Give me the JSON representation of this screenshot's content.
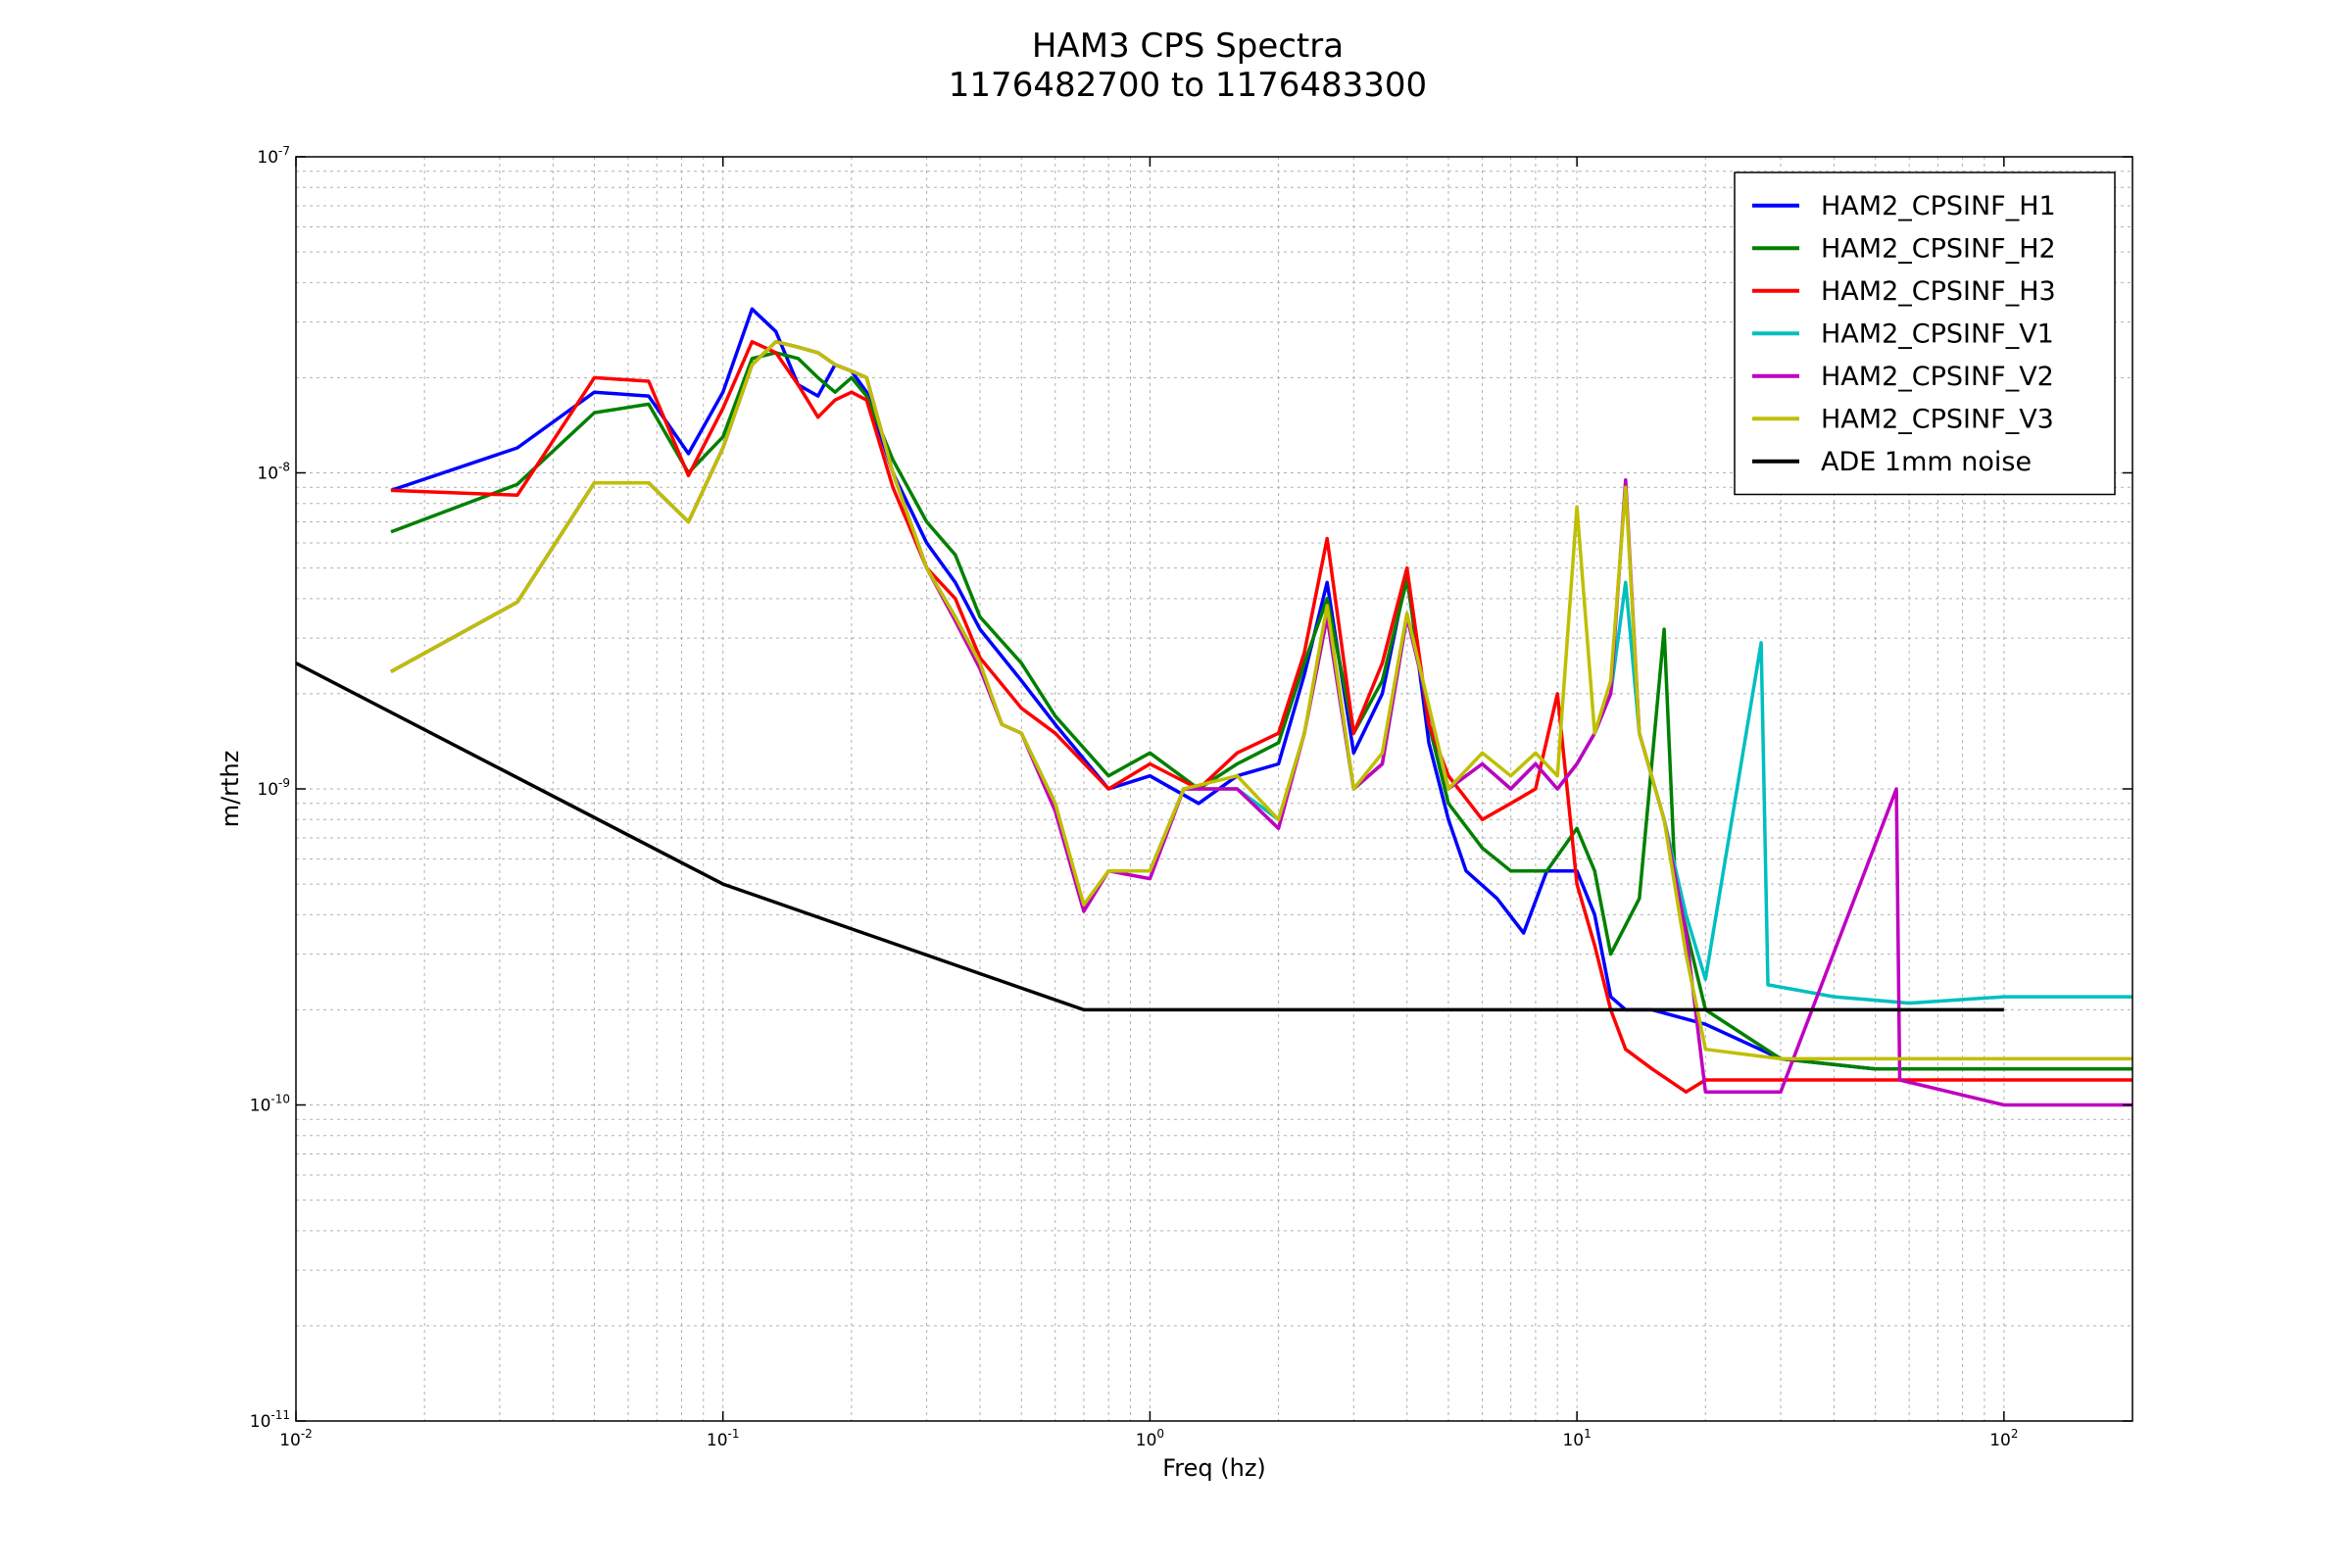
{
  "chart_data": {
    "type": "line",
    "title": "HAM3 CPS Spectra",
    "subtitle": "1176482700 to 1176483300",
    "xlabel": "Freq (hz)",
    "ylabel": "m/rthz",
    "xscale": "log",
    "yscale": "log",
    "xlim": [
      0.01,
      200
    ],
    "ylim": [
      1e-11,
      1e-07
    ],
    "grid": true,
    "legend_position": "top-right",
    "x_ticks": [
      {
        "base": "10",
        "exp": "-2",
        "value": 0.01
      },
      {
        "base": "10",
        "exp": "-1",
        "value": 0.1
      },
      {
        "base": "10",
        "exp": "0",
        "value": 1
      },
      {
        "base": "10",
        "exp": "1",
        "value": 10
      },
      {
        "base": "10",
        "exp": "2",
        "value": 100
      }
    ],
    "y_ticks": [
      {
        "base": "10",
        "exp": "-11",
        "value": 1e-11
      },
      {
        "base": "10",
        "exp": "-10",
        "value": 1e-10
      },
      {
        "base": "10",
        "exp": "-9",
        "value": 1e-09
      },
      {
        "base": "10",
        "exp": "-8",
        "value": 1e-08
      },
      {
        "base": "10",
        "exp": "-7",
        "value": 1e-07
      }
    ],
    "series": [
      {
        "name": "HAM2_CPSINF_H1",
        "color": "#0000ff",
        "points": [
          [
            0.0167,
            8.8e-09
          ],
          [
            0.033,
            1.2e-08
          ],
          [
            0.05,
            1.8e-08
          ],
          [
            0.067,
            1.75e-08
          ],
          [
            0.083,
            1.15e-08
          ],
          [
            0.1,
            1.8e-08
          ],
          [
            0.117,
            3.3e-08
          ],
          [
            0.133,
            2.8e-08
          ],
          [
            0.15,
            1.9e-08
          ],
          [
            0.167,
            1.75e-08
          ],
          [
            0.183,
            2.2e-08
          ],
          [
            0.2,
            2.1e-08
          ],
          [
            0.217,
            1.8e-08
          ],
          [
            0.25,
            1e-08
          ],
          [
            0.3,
            6e-09
          ],
          [
            0.35,
            4.5e-09
          ],
          [
            0.4,
            3.2e-09
          ],
          [
            0.5,
            2.2e-09
          ],
          [
            0.6,
            1.6e-09
          ],
          [
            0.8,
            1e-09
          ],
          [
            1.0,
            1.1e-09
          ],
          [
            1.3,
            9e-10
          ],
          [
            1.6,
            1.1e-09
          ],
          [
            2.0,
            1.2e-09
          ],
          [
            2.3,
            2.3e-09
          ],
          [
            2.6,
            4.5e-09
          ],
          [
            3.0,
            1.3e-09
          ],
          [
            3.5,
            2e-09
          ],
          [
            4.0,
            4.8e-09
          ],
          [
            4.5,
            1.4e-09
          ],
          [
            5.0,
            8e-10
          ],
          [
            5.5,
            5.5e-10
          ],
          [
            6.5,
            4.5e-10
          ],
          [
            7.5,
            3.5e-10
          ],
          [
            8.5,
            5.5e-10
          ],
          [
            10,
            5.5e-10
          ],
          [
            11,
            4e-10
          ],
          [
            12,
            2.2e-10
          ],
          [
            13,
            2e-10
          ],
          [
            15,
            2e-10
          ],
          [
            20,
            1.8e-10
          ],
          [
            30,
            1.4e-10
          ],
          [
            50,
            1.3e-10
          ],
          [
            100,
            1.3e-10
          ],
          [
            200,
            1.3e-10
          ]
        ]
      },
      {
        "name": "HAM2_CPSINF_H2",
        "color": "#008000",
        "points": [
          [
            0.0167,
            6.5e-09
          ],
          [
            0.033,
            9.2e-09
          ],
          [
            0.05,
            1.55e-08
          ],
          [
            0.067,
            1.65e-08
          ],
          [
            0.083,
            1e-08
          ],
          [
            0.1,
            1.3e-08
          ],
          [
            0.117,
            2.3e-08
          ],
          [
            0.133,
            2.4e-08
          ],
          [
            0.15,
            2.3e-08
          ],
          [
            0.167,
            2e-08
          ],
          [
            0.183,
            1.8e-08
          ],
          [
            0.2,
            2e-08
          ],
          [
            0.217,
            1.75e-08
          ],
          [
            0.25,
            1.1e-08
          ],
          [
            0.3,
            7e-09
          ],
          [
            0.35,
            5.5e-09
          ],
          [
            0.4,
            3.5e-09
          ],
          [
            0.5,
            2.5e-09
          ],
          [
            0.6,
            1.7e-09
          ],
          [
            0.8,
            1.1e-09
          ],
          [
            1.0,
            1.3e-09
          ],
          [
            1.3,
            1e-09
          ],
          [
            1.6,
            1.2e-09
          ],
          [
            2.0,
            1.4e-09
          ],
          [
            2.3,
            2.5e-09
          ],
          [
            2.6,
            4e-09
          ],
          [
            3.0,
            1.5e-09
          ],
          [
            3.5,
            2.2e-09
          ],
          [
            4.0,
            4.6e-09
          ],
          [
            4.5,
            1.6e-09
          ],
          [
            5.0,
            9e-10
          ],
          [
            6.0,
            6.5e-10
          ],
          [
            7.0,
            5.5e-10
          ],
          [
            8.5,
            5.5e-10
          ],
          [
            10,
            7.5e-10
          ],
          [
            11,
            5.5e-10
          ],
          [
            12,
            3e-10
          ],
          [
            14,
            4.5e-10
          ],
          [
            16,
            3.2e-09
          ],
          [
            17,
            5e-10
          ],
          [
            20,
            2e-10
          ],
          [
            30,
            1.4e-10
          ],
          [
            50,
            1.3e-10
          ],
          [
            100,
            1.3e-10
          ],
          [
            200,
            1.3e-10
          ]
        ]
      },
      {
        "name": "HAM2_CPSINF_H3",
        "color": "#ff0000",
        "points": [
          [
            0.0167,
            8.8e-09
          ],
          [
            0.033,
            8.5e-09
          ],
          [
            0.05,
            2e-08
          ],
          [
            0.067,
            1.95e-08
          ],
          [
            0.083,
            9.8e-09
          ],
          [
            0.1,
            1.6e-08
          ],
          [
            0.117,
            2.6e-08
          ],
          [
            0.133,
            2.4e-08
          ],
          [
            0.15,
            1.9e-08
          ],
          [
            0.167,
            1.5e-08
          ],
          [
            0.183,
            1.7e-08
          ],
          [
            0.2,
            1.8e-08
          ],
          [
            0.217,
            1.7e-08
          ],
          [
            0.25,
            9e-09
          ],
          [
            0.3,
            5e-09
          ],
          [
            0.35,
            4e-09
          ],
          [
            0.4,
            2.6e-09
          ],
          [
            0.5,
            1.8e-09
          ],
          [
            0.6,
            1.5e-09
          ],
          [
            0.8,
            1e-09
          ],
          [
            1.0,
            1.2e-09
          ],
          [
            1.3,
            1e-09
          ],
          [
            1.6,
            1.3e-09
          ],
          [
            2.0,
            1.5e-09
          ],
          [
            2.3,
            2.7e-09
          ],
          [
            2.6,
            6.2e-09
          ],
          [
            3.0,
            1.5e-09
          ],
          [
            3.5,
            2.5e-09
          ],
          [
            4.0,
            5e-09
          ],
          [
            4.5,
            1.6e-09
          ],
          [
            5.0,
            1.1e-09
          ],
          [
            6.0,
            8e-10
          ],
          [
            7.0,
            9e-10
          ],
          [
            8.0,
            1e-09
          ],
          [
            9.0,
            2e-09
          ],
          [
            10,
            5e-10
          ],
          [
            11,
            3.2e-10
          ],
          [
            12,
            2e-10
          ],
          [
            13,
            1.5e-10
          ],
          [
            15,
            1.3e-10
          ],
          [
            18,
            1.1e-10
          ],
          [
            20,
            1.2e-10
          ],
          [
            30,
            1.2e-10
          ],
          [
            50,
            1.2e-10
          ],
          [
            100,
            1.2e-10
          ],
          [
            200,
            1.2e-10
          ]
        ]
      },
      {
        "name": "HAM2_CPSINF_V1",
        "color": "#00bfbf",
        "points": [
          [
            0.0167,
            2.35e-09
          ],
          [
            0.033,
            3.9e-09
          ],
          [
            0.05,
            9.3e-09
          ],
          [
            0.067,
            9.3e-09
          ],
          [
            0.083,
            7e-09
          ],
          [
            0.1,
            1.2e-08
          ],
          [
            0.117,
            2.2e-08
          ],
          [
            0.133,
            2.6e-08
          ],
          [
            0.15,
            2.5e-08
          ],
          [
            0.167,
            2.4e-08
          ],
          [
            0.183,
            2.2e-08
          ],
          [
            0.2,
            2.1e-08
          ],
          [
            0.217,
            2e-08
          ],
          [
            0.25,
            1e-08
          ],
          [
            0.3,
            5e-09
          ],
          [
            0.35,
            3.5e-09
          ],
          [
            0.4,
            2.5e-09
          ],
          [
            0.45,
            1.6e-09
          ],
          [
            0.5,
            1.5e-09
          ],
          [
            0.6,
            9e-10
          ],
          [
            0.7,
            4.2e-10
          ],
          [
            0.8,
            5.5e-10
          ],
          [
            1.0,
            5.5e-10
          ],
          [
            1.2,
            1e-09
          ],
          [
            1.6,
            1e-09
          ],
          [
            2.0,
            8e-10
          ],
          [
            2.3,
            1.5e-09
          ],
          [
            2.6,
            3.5e-09
          ],
          [
            3.0,
            1e-09
          ],
          [
            3.5,
            1.2e-09
          ],
          [
            4.0,
            3.5e-09
          ],
          [
            5.0,
            1e-09
          ],
          [
            6.0,
            1.2e-09
          ],
          [
            7.0,
            1e-09
          ],
          [
            8.0,
            1.2e-09
          ],
          [
            9.0,
            1e-09
          ],
          [
            10,
            1.2e-09
          ],
          [
            11,
            1.5e-09
          ],
          [
            12,
            2e-09
          ],
          [
            13,
            4.5e-09
          ],
          [
            14,
            1.5e-09
          ],
          [
            16,
            8e-10
          ],
          [
            18,
            4e-10
          ],
          [
            20,
            2.5e-10
          ],
          [
            27,
            2.9e-09
          ],
          [
            28,
            2.4e-10
          ],
          [
            40,
            2.2e-10
          ],
          [
            60,
            2.1e-10
          ],
          [
            100,
            2.2e-10
          ],
          [
            200,
            2.2e-10
          ]
        ]
      },
      {
        "name": "HAM2_CPSINF_V2",
        "color": "#bf00bf",
        "points": [
          [
            0.0167,
            2.35e-09
          ],
          [
            0.033,
            3.9e-09
          ],
          [
            0.05,
            9.3e-09
          ],
          [
            0.067,
            9.3e-09
          ],
          [
            0.083,
            7e-09
          ],
          [
            0.1,
            1.2e-08
          ],
          [
            0.117,
            2.2e-08
          ],
          [
            0.133,
            2.6e-08
          ],
          [
            0.15,
            2.5e-08
          ],
          [
            0.167,
            2.4e-08
          ],
          [
            0.183,
            2.2e-08
          ],
          [
            0.2,
            2.1e-08
          ],
          [
            0.217,
            2e-08
          ],
          [
            0.25,
            1e-08
          ],
          [
            0.3,
            5e-09
          ],
          [
            0.35,
            3.4e-09
          ],
          [
            0.4,
            2.4e-09
          ],
          [
            0.45,
            1.6e-09
          ],
          [
            0.5,
            1.5e-09
          ],
          [
            0.6,
            8.5e-10
          ],
          [
            0.7,
            4.1e-10
          ],
          [
            0.8,
            5.5e-10
          ],
          [
            1.0,
            5.2e-10
          ],
          [
            1.2,
            1e-09
          ],
          [
            1.6,
            1e-09
          ],
          [
            2.0,
            7.5e-10
          ],
          [
            2.3,
            1.5e-09
          ],
          [
            2.6,
            3.5e-09
          ],
          [
            3.0,
            1e-09
          ],
          [
            3.5,
            1.2e-09
          ],
          [
            4.0,
            3.5e-09
          ],
          [
            5.0,
            1e-09
          ],
          [
            6.0,
            1.2e-09
          ],
          [
            7.0,
            1e-09
          ],
          [
            8.0,
            1.2e-09
          ],
          [
            9.0,
            1e-09
          ],
          [
            10,
            1.2e-09
          ],
          [
            11,
            1.5e-09
          ],
          [
            12,
            2e-09
          ],
          [
            13,
            9.5e-09
          ],
          [
            14,
            1.5e-09
          ],
          [
            16,
            8e-10
          ],
          [
            18,
            3.5e-10
          ],
          [
            20,
            1.1e-10
          ],
          [
            30,
            1.1e-10
          ],
          [
            56,
            1e-09
          ],
          [
            57,
            1.2e-10
          ],
          [
            100,
            1e-10
          ],
          [
            200,
            1e-10
          ]
        ]
      },
      {
        "name": "HAM2_CPSINF_V3",
        "color": "#bfbf00",
        "points": [
          [
            0.0167,
            2.35e-09
          ],
          [
            0.033,
            3.9e-09
          ],
          [
            0.05,
            9.3e-09
          ],
          [
            0.067,
            9.3e-09
          ],
          [
            0.083,
            7e-09
          ],
          [
            0.1,
            1.2e-08
          ],
          [
            0.117,
            2.2e-08
          ],
          [
            0.133,
            2.6e-08
          ],
          [
            0.15,
            2.5e-08
          ],
          [
            0.167,
            2.4e-08
          ],
          [
            0.183,
            2.2e-08
          ],
          [
            0.2,
            2.1e-08
          ],
          [
            0.217,
            2e-08
          ],
          [
            0.25,
            1e-08
          ],
          [
            0.3,
            5e-09
          ],
          [
            0.35,
            3.5e-09
          ],
          [
            0.4,
            2.5e-09
          ],
          [
            0.45,
            1.6e-09
          ],
          [
            0.5,
            1.5e-09
          ],
          [
            0.6,
            9e-10
          ],
          [
            0.7,
            4.3e-10
          ],
          [
            0.8,
            5.5e-10
          ],
          [
            1.0,
            5.5e-10
          ],
          [
            1.2,
            1e-09
          ],
          [
            1.6,
            1.1e-09
          ],
          [
            2.0,
            8e-10
          ],
          [
            2.3,
            1.5e-09
          ],
          [
            2.6,
            3.8e-09
          ],
          [
            3.0,
            1e-09
          ],
          [
            3.5,
            1.3e-09
          ],
          [
            4.0,
            3.6e-09
          ],
          [
            5.0,
            1e-09
          ],
          [
            6.0,
            1.3e-09
          ],
          [
            7.0,
            1.1e-09
          ],
          [
            8.0,
            1.3e-09
          ],
          [
            9.0,
            1.1e-09
          ],
          [
            10,
            7.8e-09
          ],
          [
            11,
            1.5e-09
          ],
          [
            12,
            2.2e-09
          ],
          [
            13,
            9e-09
          ],
          [
            14,
            1.5e-09
          ],
          [
            16,
            8e-10
          ],
          [
            18,
            3e-10
          ],
          [
            20,
            1.5e-10
          ],
          [
            30,
            1.4e-10
          ],
          [
            50,
            1.4e-10
          ],
          [
            100,
            1.4e-10
          ],
          [
            200,
            1.4e-10
          ]
        ]
      },
      {
        "name": "ADE 1mm noise",
        "color": "#000000",
        "points": [
          [
            0.01,
            2.5e-09
          ],
          [
            0.1,
            5e-10
          ],
          [
            0.7,
            2e-10
          ],
          [
            100,
            2e-10
          ]
        ]
      }
    ]
  }
}
